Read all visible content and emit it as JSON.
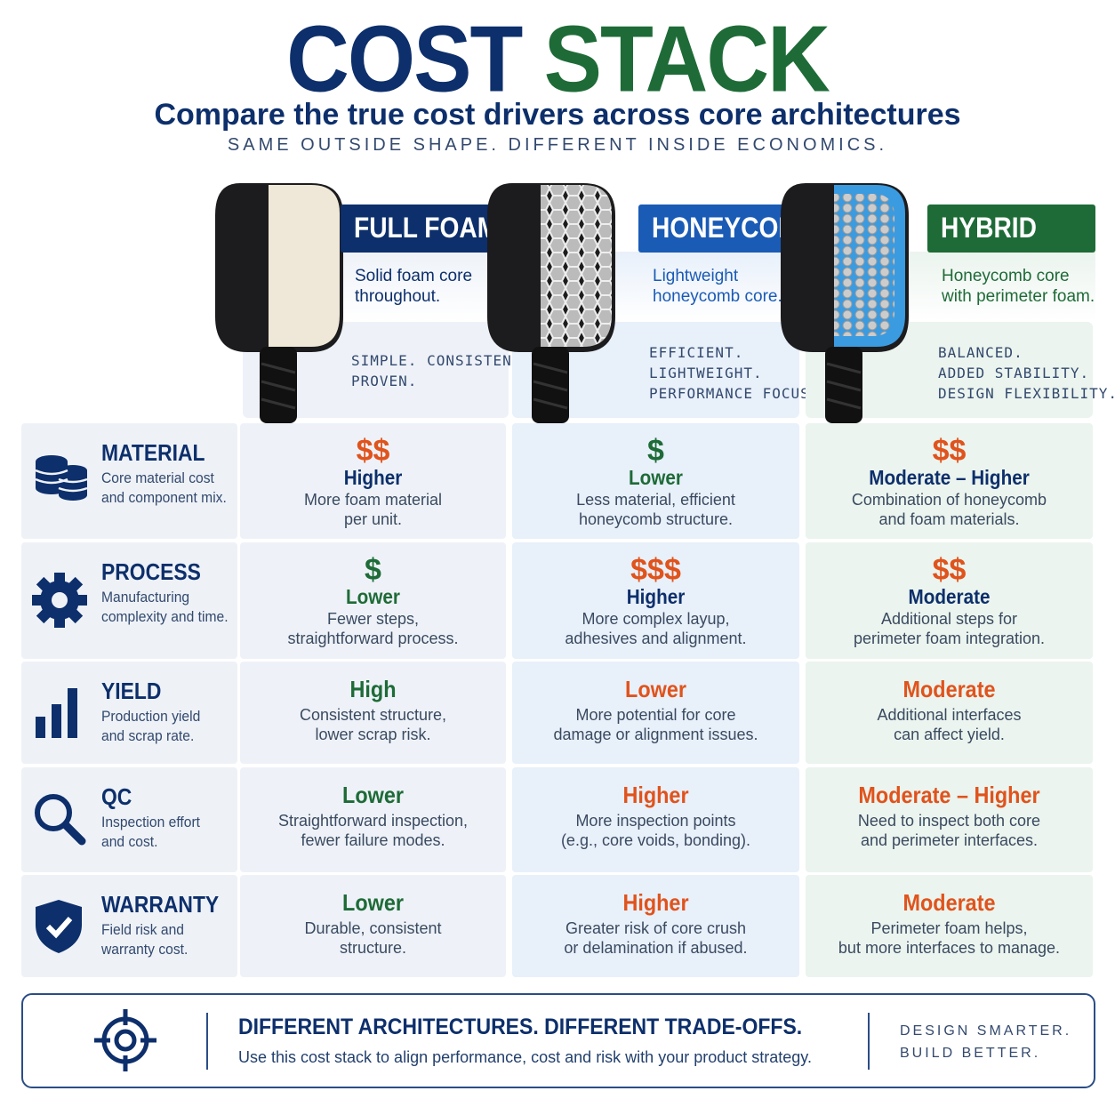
{
  "title": {
    "first": "COST",
    "second": "STACK"
  },
  "subtitle": "Compare the true cost drivers across core architectures",
  "tagline": "SAME OUTSIDE SHAPE. DIFFERENT INSIDE ECONOMICS.",
  "architectures": [
    {
      "name": "FULL FOAM",
      "color": "#0d2f6b",
      "description": [
        "Solid foam core",
        "throughout."
      ],
      "traits": [
        "SIMPLE. CONSISTENT.",
        "PROVEN."
      ]
    },
    {
      "name": "HONEYCOMB",
      "color": "#1a5bb5",
      "description": [
        "Lightweight",
        "honeycomb core."
      ],
      "traits": [
        "EFFICIENT.",
        "LIGHTWEIGHT.",
        "PERFORMANCE FOCUS."
      ]
    },
    {
      "name": "HYBRID",
      "color": "#1e6b37",
      "description": [
        "Honeycomb core",
        "with perimeter foam."
      ],
      "traits": [
        "BALANCED.",
        "ADDED STABILITY.",
        "DESIGN FLEXIBILITY."
      ]
    }
  ],
  "rows": [
    {
      "name": "MATERIAL",
      "description": [
        "Core material cost",
        "and component mix."
      ],
      "cells": [
        {
          "cost": "$$",
          "cost_color": "#e0531c",
          "rating": "Higher",
          "rating_color": "#0d2f6b",
          "note": [
            "More foam material",
            "per unit."
          ]
        },
        {
          "cost": "$",
          "cost_color": "#1e6b37",
          "rating": "Lower",
          "rating_color": "#1e6b37",
          "note": [
            "Less material, efficient",
            "honeycomb structure."
          ]
        },
        {
          "cost": "$$",
          "cost_color": "#e0531c",
          "rating": "Moderate – Higher",
          "rating_color": "#0d2f6b",
          "note": [
            "Combination of honeycomb",
            "and foam materials."
          ]
        }
      ]
    },
    {
      "name": "PROCESS",
      "description": [
        "Manufacturing",
        "complexity and time."
      ],
      "cells": [
        {
          "cost": "$",
          "cost_color": "#1e6b37",
          "rating": "Lower",
          "rating_color": "#1e6b37",
          "note": [
            "Fewer steps,",
            "straightforward process."
          ]
        },
        {
          "cost": "$$$",
          "cost_color": "#e0531c",
          "rating": "Higher",
          "rating_color": "#0d2f6b",
          "note": [
            "More complex layup,",
            "adhesives and alignment."
          ]
        },
        {
          "cost": "$$",
          "cost_color": "#e0531c",
          "rating": "Moderate",
          "rating_color": "#0d2f6b",
          "note": [
            "Additional steps for",
            "perimeter foam integration."
          ]
        }
      ]
    },
    {
      "name": "YIELD",
      "description": [
        "Production yield",
        "and scrap rate."
      ],
      "cells": [
        {
          "rating": "High",
          "rating_color": "#1e6b37",
          "note": [
            "Consistent structure,",
            "lower scrap risk."
          ]
        },
        {
          "rating": "Lower",
          "rating_color": "#e0531c",
          "note": [
            "More potential for core",
            "damage or alignment issues."
          ]
        },
        {
          "rating": "Moderate",
          "rating_color": "#e0531c",
          "note": [
            "Additional interfaces",
            "can affect yield."
          ]
        }
      ]
    },
    {
      "name": "QC",
      "description": [
        "Inspection effort",
        "and cost."
      ],
      "cells": [
        {
          "rating": "Lower",
          "rating_color": "#1e6b37",
          "note": [
            "Straightforward inspection,",
            "fewer failure modes."
          ]
        },
        {
          "rating": "Higher",
          "rating_color": "#e0531c",
          "note": [
            "More inspection points",
            "(e.g., core voids, bonding)."
          ]
        },
        {
          "rating": "Moderate – Higher",
          "rating_color": "#e0531c",
          "note": [
            "Need to inspect both core",
            "and perimeter interfaces."
          ]
        }
      ]
    },
    {
      "name": "WARRANTY",
      "description": [
        "Field risk and",
        "warranty cost."
      ],
      "cells": [
        {
          "rating": "Lower",
          "rating_color": "#1e6b37",
          "note": [
            "Durable, consistent",
            "structure."
          ]
        },
        {
          "rating": "Higher",
          "rating_color": "#e0531c",
          "note": [
            "Greater risk of core crush",
            "or delamination if abused."
          ]
        },
        {
          "rating": "Moderate",
          "rating_color": "#e0531c",
          "note": [
            "Perimeter foam helps,",
            "but more interfaces to manage."
          ]
        }
      ]
    }
  ],
  "footer": {
    "headline": "DIFFERENT ARCHITECTURES. DIFFERENT TRADE-OFFS.",
    "text": "Use this cost stack to align performance, cost and risk with your product strategy.",
    "slogan": [
      "DESIGN SMARTER.",
      "BUILD BETTER."
    ]
  }
}
